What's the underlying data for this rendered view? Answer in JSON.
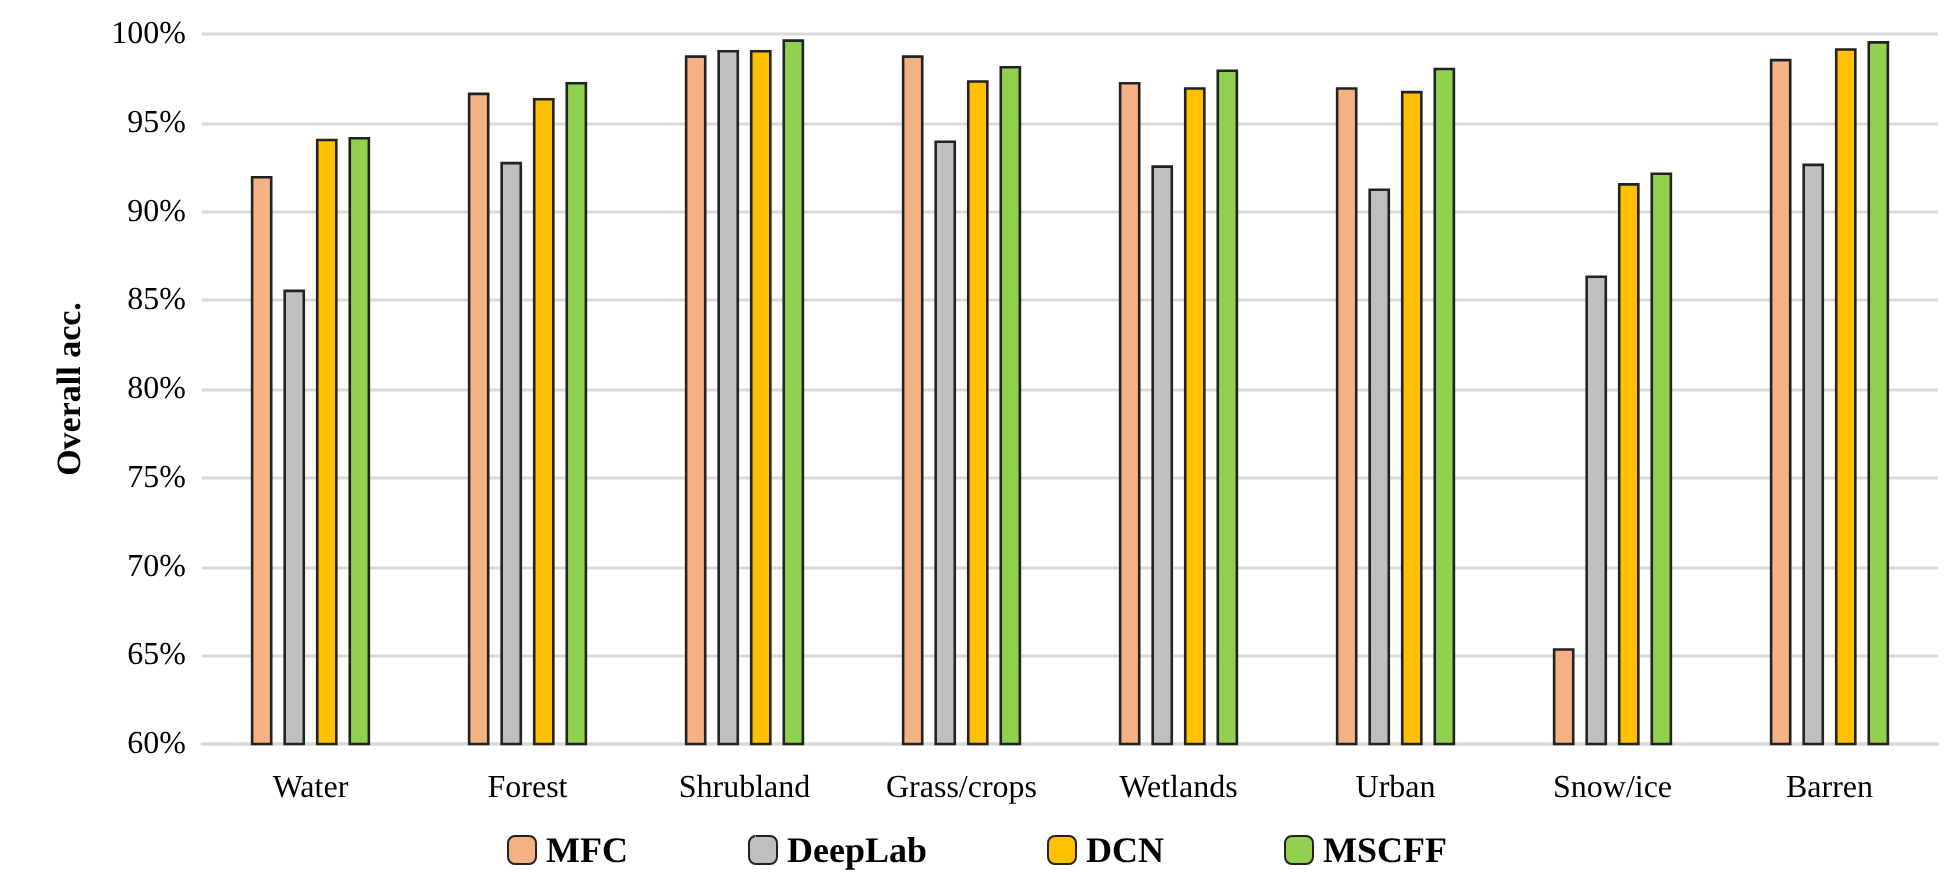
{
  "chart_data": {
    "type": "bar",
    "ylabel": "Overall acc.",
    "categories": [
      "Water",
      "Forest",
      "Shrubland",
      "Grass/crops",
      "Wetlands",
      "Urban",
      "Snow/ice",
      "Barren"
    ],
    "series": [
      {
        "name": "MFC",
        "color": "#f4b183",
        "values": [
          92.0,
          96.7,
          98.8,
          98.8,
          97.3,
          97.0,
          65.4,
          98.6
        ]
      },
      {
        "name": "DeepLab",
        "color": "#bfbfbf",
        "values": [
          85.6,
          92.8,
          99.1,
          94.0,
          92.6,
          91.3,
          86.4,
          92.7
        ]
      },
      {
        "name": "DCN",
        "color": "#ffc000",
        "values": [
          94.1,
          96.4,
          99.1,
          97.4,
          97.0,
          96.8,
          91.6,
          99.2
        ]
      },
      {
        "name": "MSCFF",
        "color": "#92d050",
        "values": [
          94.2,
          97.3,
          99.7,
          98.2,
          98.0,
          98.1,
          92.2,
          99.6
        ]
      }
    ],
    "ylim": [
      60,
      100
    ],
    "yticks": [
      {
        "value": 60,
        "label": "60%"
      },
      {
        "value": 65,
        "label": "65%"
      },
      {
        "value": 70,
        "label": "70%"
      },
      {
        "value": 75,
        "label": "75%"
      },
      {
        "value": 80,
        "label": "80%"
      },
      {
        "value": 85,
        "label": "85%"
      },
      {
        "value": 90,
        "label": "90%"
      },
      {
        "value": 95,
        "label": "95%"
      },
      {
        "value": 100,
        "label": "100%"
      }
    ],
    "grid": "y",
    "legend": "bottom"
  }
}
